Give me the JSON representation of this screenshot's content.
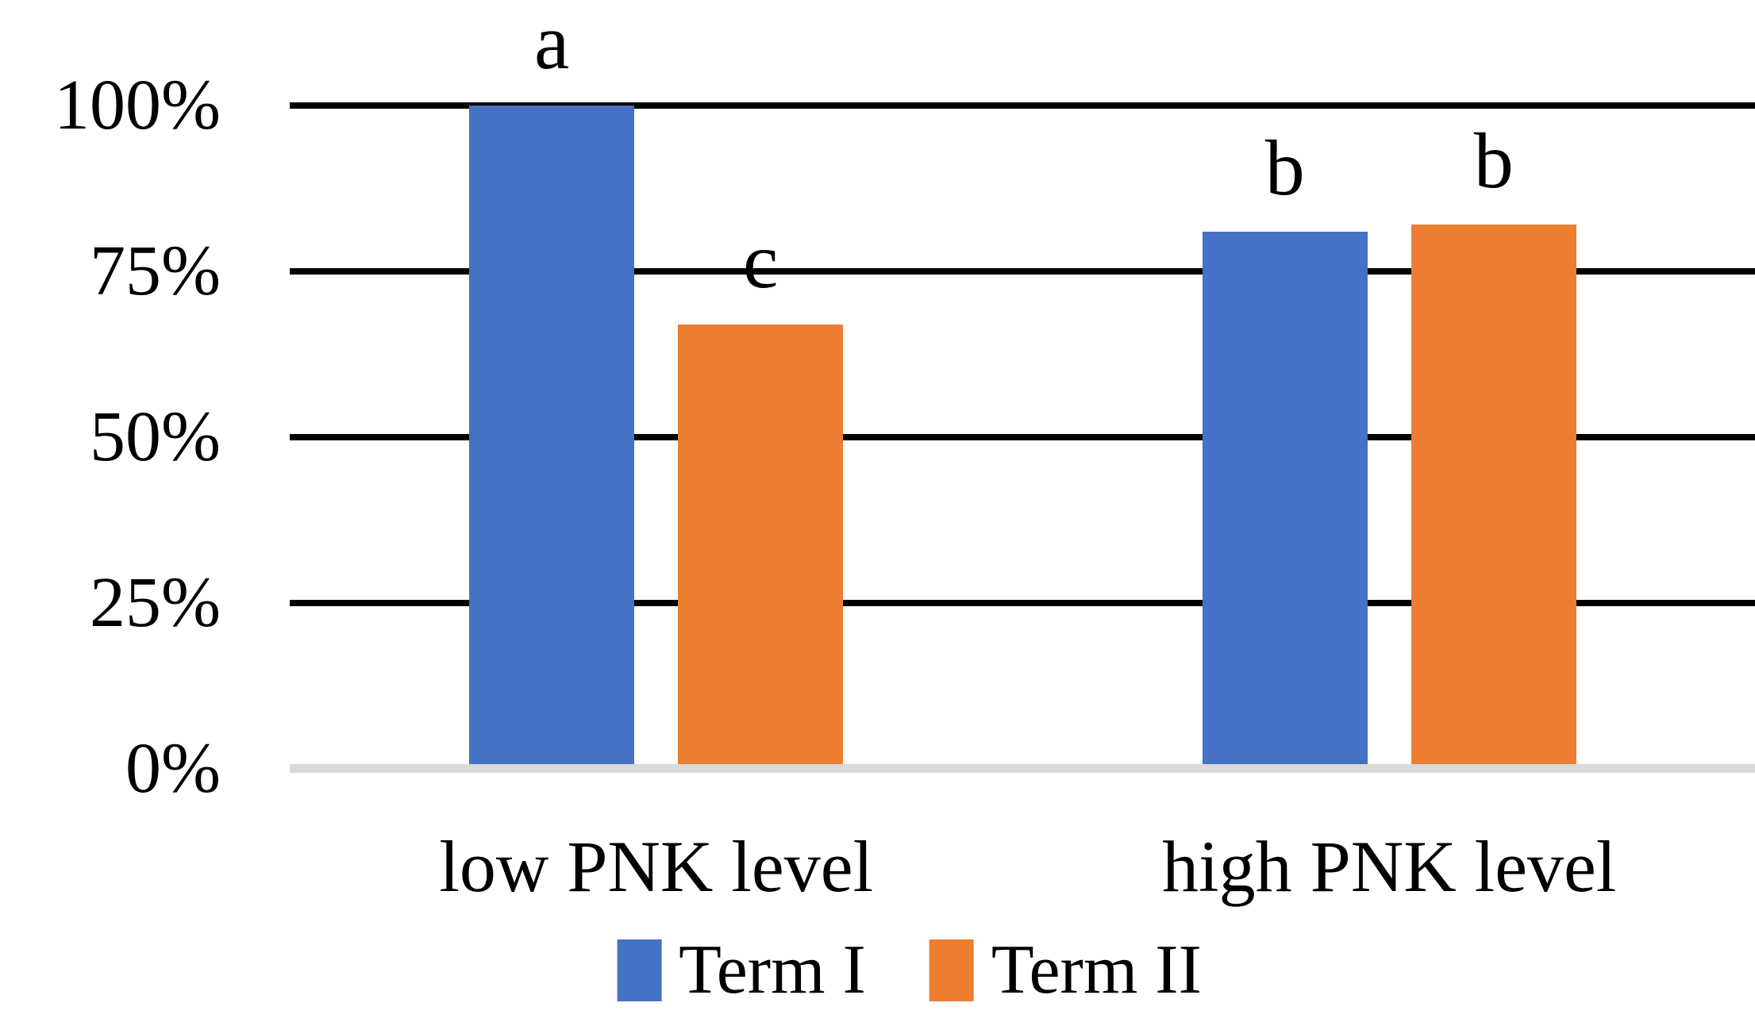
{
  "chart_data": {
    "type": "bar",
    "title": "",
    "categories": [
      "low PNK level",
      "high PNK level"
    ],
    "series": [
      {
        "name": "Term I",
        "color": "#4472C4",
        "values": [
          100,
          81
        ]
      },
      {
        "name": "Term II",
        "color": "#ED7D31",
        "values": [
          67,
          82
        ]
      }
    ],
    "annotations": [
      {
        "category_index": 0,
        "series_index": 0,
        "letter": "a"
      },
      {
        "category_index": 0,
        "series_index": 1,
        "letter": "c"
      },
      {
        "category_index": 1,
        "series_index": 0,
        "letter": "b"
      },
      {
        "category_index": 1,
        "series_index": 1,
        "letter": "b"
      }
    ],
    "yticks": [
      {
        "value": 0,
        "label": "0%"
      },
      {
        "value": 25,
        "label": "25%"
      },
      {
        "value": 50,
        "label": "50%"
      },
      {
        "value": 75,
        "label": "75%"
      },
      {
        "value": 100,
        "label": "100%"
      }
    ],
    "ylim": [
      0,
      100
    ],
    "unit": "percent",
    "grid": "horizontal-black",
    "baseline_color": "#d9d9d9",
    "gridline_color": "#000000",
    "legend_position": "bottom-center"
  }
}
